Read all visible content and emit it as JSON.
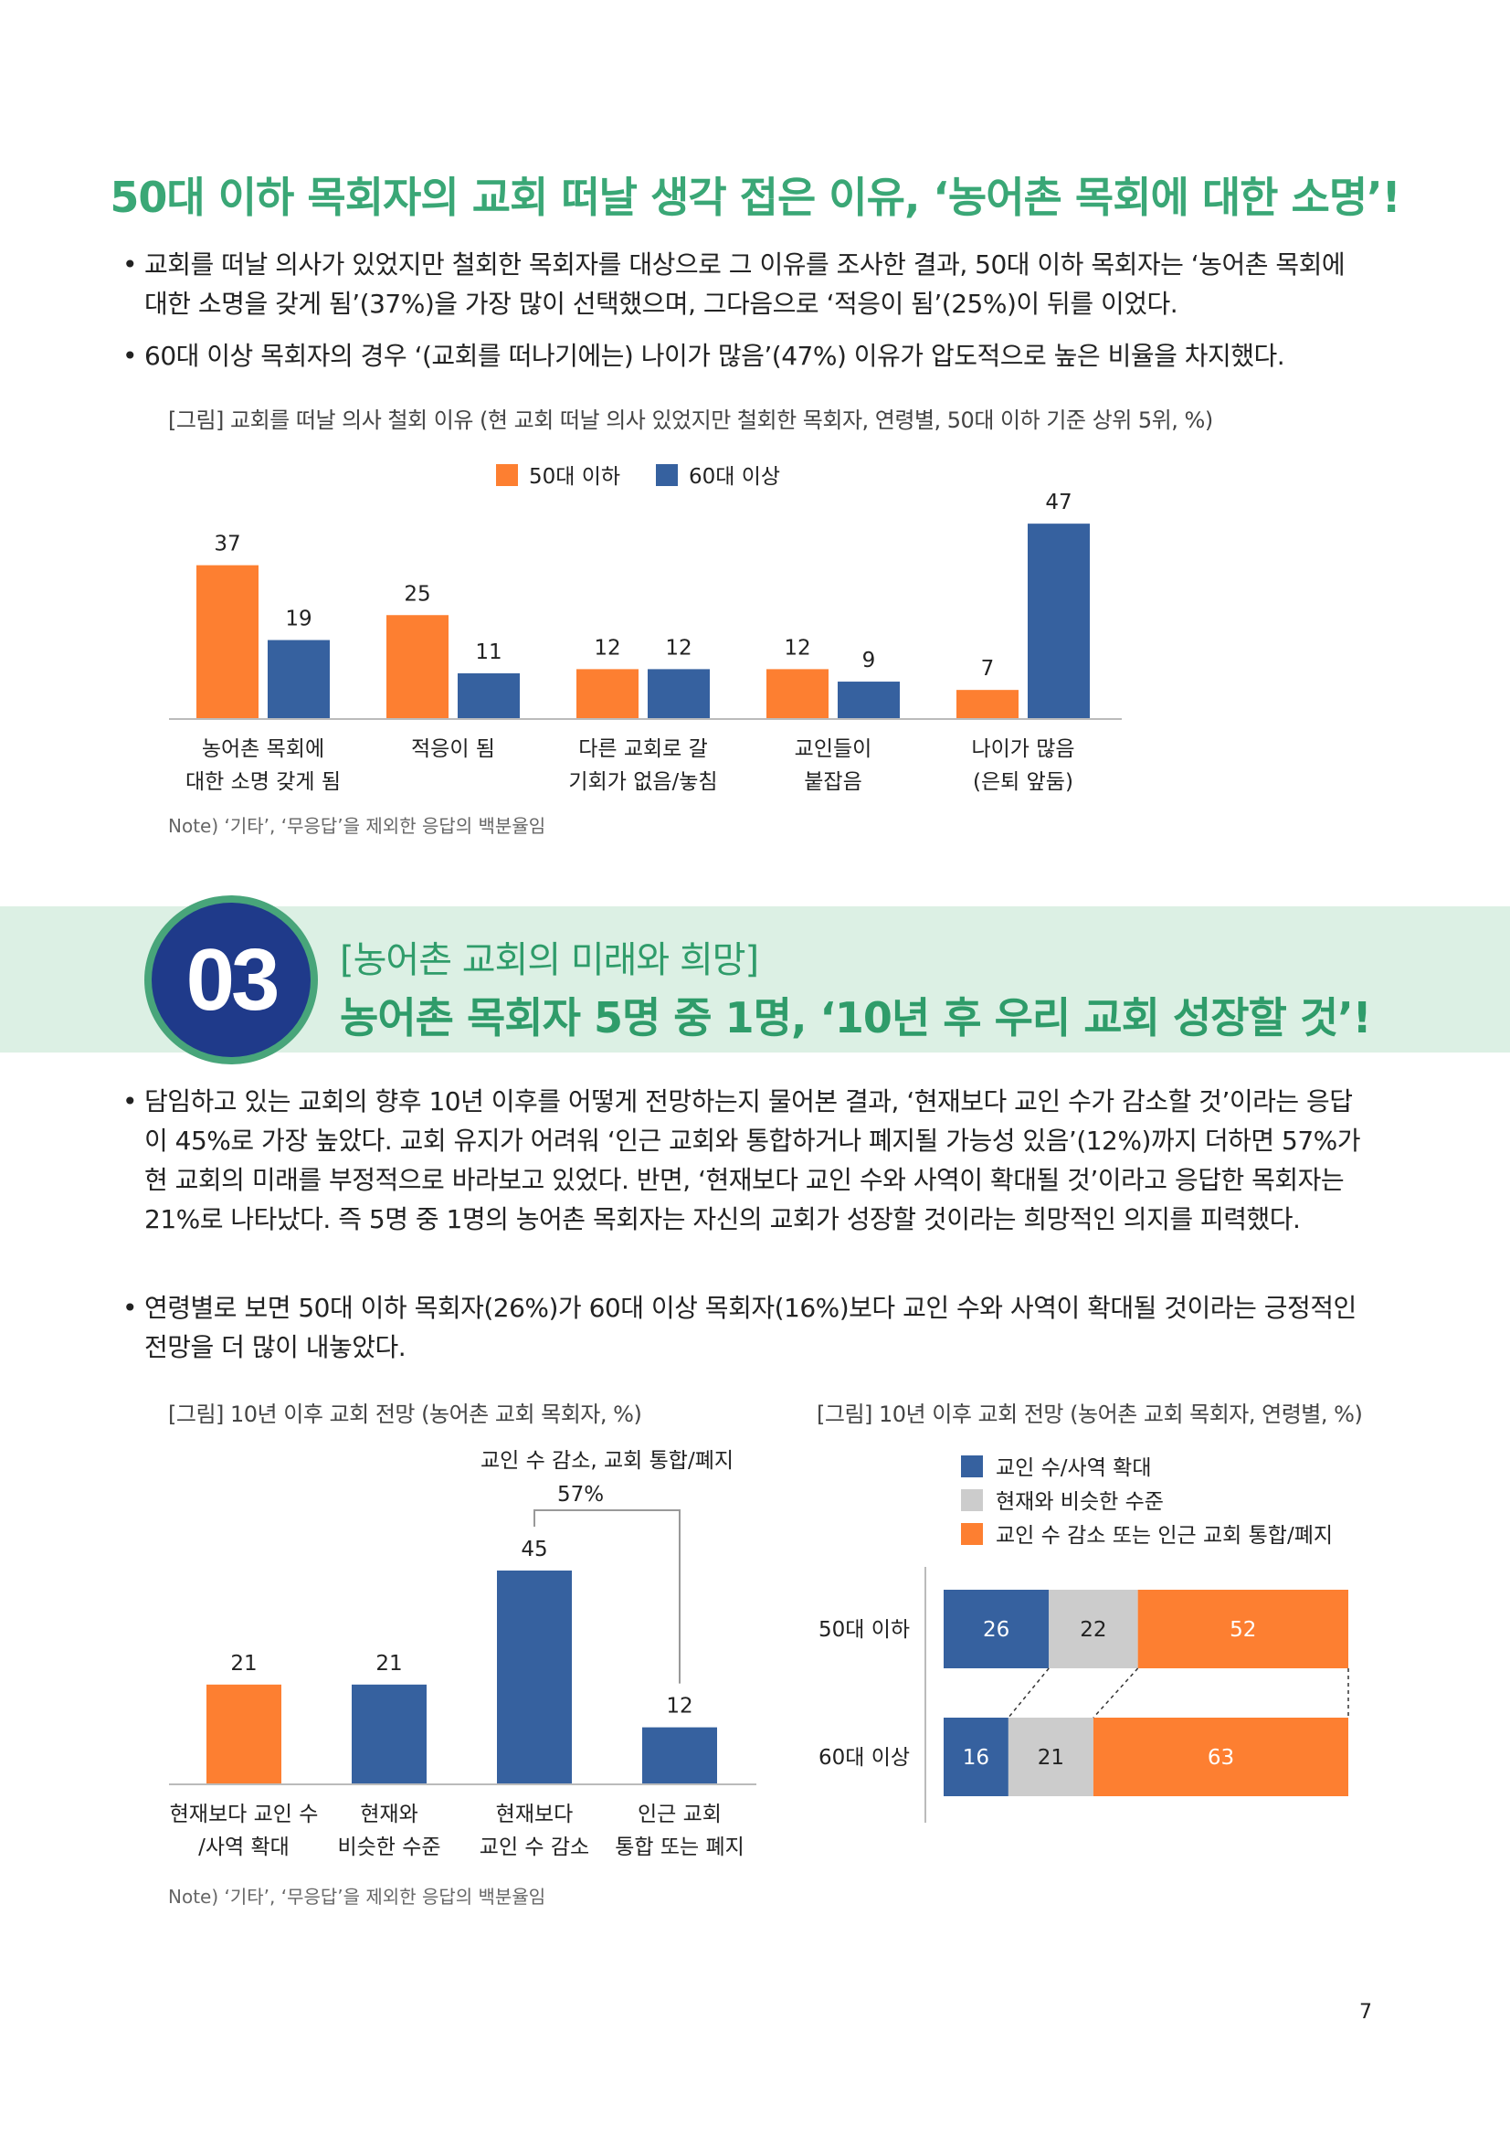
{
  "title": "50대 이하 목회자의 교회 떠날 생각 접은 이유, ‘농어촌 목회에 대한 소명’!",
  "bullets_top": [
    "교회를 떠날 의사가 있었지만 철회한 목회자를 대상으로 그 이유를 조사한 결과, 50대 이하 목회자는 ‘농어촌 목회에 대한 소명을 갖게 됨’(37%)을 가장 많이 선택했으며, 그다음으로 ‘적응이 됨’(25%)이 뒤를 이었다.",
    "60대 이상 목회자의 경우 ‘(교회를 떠나기에는) 나이가 많음’(47%) 이유가 압도적으로 높은 비율을 차지했다."
  ],
  "figure1_caption": "[그림] 교회를 떠날 의사 철회 이유 (현 교회 떠날 의사 있었지만 철회한 목회자, 연령별, 50대 이하 기준 상위 5위, %)",
  "note": "Note) ‘기타’, ‘무응답’을 제외한 응답의 백분율임",
  "section": {
    "number": "03",
    "subtitle": "[농어촌 교회의 미래와 희망]",
    "title": "농어촌 목회자 5명 중 1명, ‘10년 후 우리 교회 성장할 것’!"
  },
  "bullets_bottom": [
    "담임하고 있는 교회의 향후 10년 이후를 어떻게 전망하는지 물어본 결과, ‘현재보다 교인 수가 감소할 것’이라는 응답이 45%로 가장 높았다. 교회 유지가 어려워 ‘인근 교회와 통합하거나 폐지될 가능성 있음’(12%)까지 더하면 57%가 현 교회의 미래를 부정적으로 바라보고 있었다. 반면, ‘현재보다 교인 수와 사역이 확대될 것’이라고 응답한 목회자는 21%로 나타났다. 즉 5명 중 1명의 농어촌 목회자는 자신의 교회가 성장할 것이라는 희망적인 의지를 피력했다.",
    "연령별로 보면 50대 이하 목회자(26%)가 60대 이상 목회자(16%)보다 교인 수와 사역이 확대될 것이라는 긍정적인 전망을 더 많이 내놓았다."
  ],
  "figure2_caption": "[그림] 10년 이후 교회 전망 (농어촌 교회 목회자, %)",
  "figure3_caption": "[그림] 10년 이후 교회 전망 (농어촌 교회 목회자, 연령별, %)",
  "page_number": "7",
  "colors": {
    "orange": "#fd7f31",
    "blue": "#36619f",
    "gray": "#cccccc",
    "green": "#3aa776"
  },
  "chart_data": [
    {
      "type": "bar",
      "categories": [
        [
          "농어촌 목회에",
          "대한 소명 갖게 됨"
        ],
        [
          "적응이 됨"
        ],
        [
          "다른 교회로 갈",
          "기회가 없음/놓침"
        ],
        [
          "교인들이",
          "붙잡음"
        ],
        [
          "나이가 많음",
          "(은퇴 앞둠)"
        ]
      ],
      "series": [
        {
          "name": "50대 이하",
          "values": [
            37,
            25,
            12,
            12,
            7
          ],
          "color": "#fd7f31"
        },
        {
          "name": "60대 이상",
          "values": [
            19,
            11,
            12,
            9,
            47
          ],
          "color": "#36619f"
        }
      ],
      "legend": "top-center",
      "ylim": [
        0,
        50
      ]
    },
    {
      "type": "bar",
      "categories": [
        [
          "현재보다 교인 수",
          "/사역 확대"
        ],
        [
          "현재와",
          "비슷한 수준"
        ],
        [
          "현재보다",
          "교인 수 감소"
        ],
        [
          "인근 교회",
          "통합 또는 폐지"
        ]
      ],
      "values": [
        21,
        21,
        45,
        12
      ],
      "colors": [
        "#fd7f31",
        "#36619f",
        "#36619f",
        "#36619f"
      ],
      "annotation": {
        "label": "교인 수 감소, 교회 통합/폐지",
        "value": "57%"
      },
      "ylim": [
        0,
        50
      ]
    },
    {
      "type": "bar",
      "orientation": "horizontal-stacked",
      "legend": [
        "교인 수/사역 확대",
        "현재와 비슷한 수준",
        "교인 수 감소 또는 인근 교회 통합/폐지"
      ],
      "legend_colors": [
        "#36619f",
        "#cccccc",
        "#fd7f31"
      ],
      "rows": [
        {
          "label": "50대 이하",
          "values": [
            26,
            22,
            52
          ]
        },
        {
          "label": "60대 이상",
          "values": [
            16,
            21,
            63
          ]
        }
      ],
      "xlim": [
        0,
        100
      ]
    }
  ]
}
